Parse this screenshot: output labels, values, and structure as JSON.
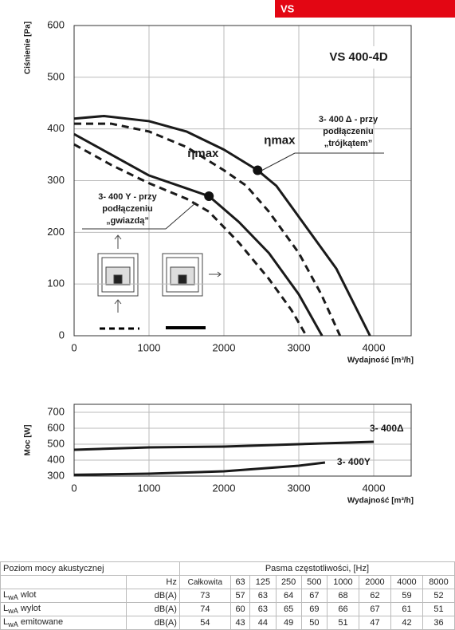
{
  "badge": "VS",
  "chart_data": [
    {
      "type": "line",
      "title": "VS 400-4D",
      "xlabel": "Wydajność [m³/h]",
      "ylabel": "Ciśnienie [Pa]",
      "xlim": [
        0,
        4500
      ],
      "ylim": [
        0,
        600
      ],
      "xticks": [
        0,
        1000,
        2000,
        3000,
        4000
      ],
      "yticks": [
        0,
        100,
        200,
        300,
        400,
        500,
        600
      ],
      "grid": true,
      "series": [
        {
          "color": "#1a1a1a",
          "dash": false,
          "x": [
            0,
            400,
            1000,
            1500,
            2000,
            2450,
            2700,
            3000,
            3500,
            3950
          ],
          "values": [
            420,
            425,
            415,
            395,
            360,
            320,
            290,
            230,
            130,
            0
          ]
        },
        {
          "color": "#1a1a1a",
          "dash": true,
          "x": [
            0,
            500,
            1000,
            1500,
            2000,
            2300,
            2600,
            3000,
            3300,
            3550
          ],
          "values": [
            410,
            410,
            395,
            365,
            320,
            290,
            240,
            160,
            80,
            0
          ]
        },
        {
          "color": "#1a1a1a",
          "dash": false,
          "x": [
            0,
            500,
            1000,
            1500,
            1800,
            2200,
            2600,
            3000,
            3310
          ],
          "values": [
            390,
            350,
            310,
            285,
            270,
            220,
            160,
            80,
            0
          ]
        },
        {
          "color": "#1a1a1a",
          "dash": true,
          "x": [
            0,
            500,
            1000,
            1500,
            1800,
            2200,
            2600,
            2900,
            3100
          ],
          "values": [
            370,
            330,
            295,
            265,
            240,
            180,
            110,
            50,
            0
          ]
        }
      ],
      "markers": [
        {
          "label": "ηmax",
          "x": 2450,
          "y": 320
        },
        {
          "label": "ηmax",
          "x": 1800,
          "y": 270
        }
      ],
      "annotations": [
        {
          "lines": [
            "3- 400 Δ - przy",
            "podłączeniu",
            "„trójkątem”"
          ]
        },
        {
          "lines": [
            "3- 400 Y - przy",
            "podłączeniu",
            "„gwiazdą”"
          ]
        }
      ]
    },
    {
      "type": "line",
      "xlabel": "Wydajność [m³/h]",
      "ylabel": "Moc [W]",
      "xlim": [
        0,
        4500
      ],
      "ylim": [
        300,
        750
      ],
      "xticks": [
        0,
        1000,
        2000,
        3000,
        4000
      ],
      "yticks": [
        300,
        400,
        500,
        600,
        700
      ],
      "grid": true,
      "series": [
        {
          "name": "3- 400Δ",
          "color": "#1a1a1a",
          "x": [
            0,
            1000,
            2000,
            3000,
            4000
          ],
          "values": [
            465,
            480,
            485,
            500,
            515
          ]
        },
        {
          "name": "3-  400Y",
          "color": "#1a1a1a",
          "x": [
            0,
            1000,
            2000,
            3000,
            3350
          ],
          "values": [
            308,
            315,
            330,
            365,
            385
          ]
        }
      ]
    }
  ],
  "table": {
    "title": "Poziom mocy akustycznej",
    "band_header": "Pasma częstotliwości, [Hz]",
    "columns": [
      "Hz",
      "Całkowita",
      "63",
      "125",
      "250",
      "500",
      "1000",
      "2000",
      "4000",
      "8000"
    ],
    "rows": [
      {
        "label": {
          "symbol": "L",
          "sub": "wA",
          "text": " wlot"
        },
        "unit": "dB(A)",
        "values": [
          73,
          57,
          63,
          64,
          67,
          68,
          62,
          59,
          52
        ]
      },
      {
        "label": {
          "symbol": "L",
          "sub": "wA",
          "text": " wylot"
        },
        "unit": "dB(A)",
        "values": [
          74,
          60,
          63,
          65,
          69,
          66,
          67,
          61,
          51
        ]
      },
      {
        "label": {
          "symbol": "L",
          "sub": "wA",
          "text": " emitowane"
        },
        "unit": "dB(A)",
        "values": [
          54,
          43,
          44,
          49,
          50,
          51,
          47,
          42,
          36
        ]
      }
    ]
  }
}
